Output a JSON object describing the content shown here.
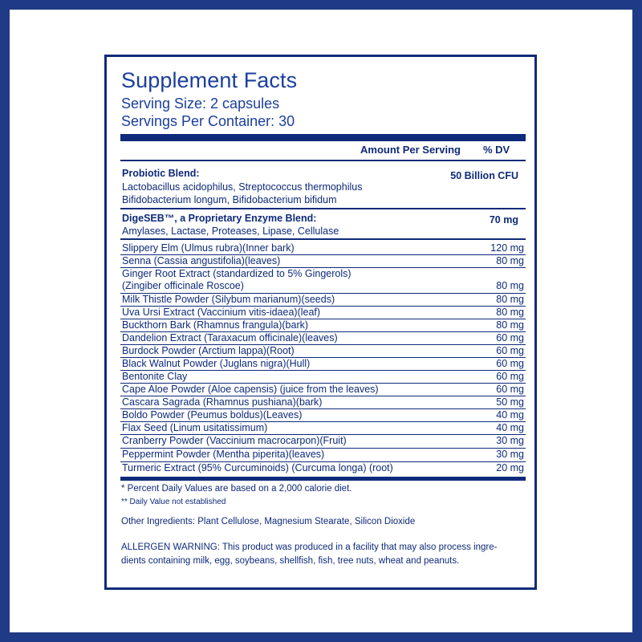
{
  "title": "Supplement Facts",
  "serving_size": "Serving Size: 2 capsules",
  "servings_per_container": "Servings Per Container: 30",
  "header": {
    "amount": "Amount Per Serving",
    "dv": "% DV"
  },
  "probiotic": {
    "title": "Probiotic Blend:",
    "line1": "Lactobacillus acidophilus, Streptococcus thermophilus",
    "line2": "Bifidobacterium longum, Bifidobacterium bifidum",
    "amount": "50 Billion CFU"
  },
  "enzyme": {
    "title": "DigeSEB™, a Proprietary Enzyme Blend:",
    "line1": "Amylases, Lactase, Proteases, Lipase, Cellulase",
    "amount": "70 mg"
  },
  "ingredients": [
    {
      "name": "Slippery Elm (Ulmus rubra)(Inner bark)",
      "amount": "120 mg"
    },
    {
      "name": "Senna (Cassia angustifolia)(leaves)",
      "amount": "80 mg"
    },
    {
      "name": "Ginger Root Extract (standardized to 5% Gingerols)",
      "name2": "(Zingiber officinale Roscoe)",
      "amount": "80 mg"
    },
    {
      "name": "Milk Thistle Powder (Silybum marianum)(seeds)",
      "amount": "80 mg"
    },
    {
      "name": "Uva Ursi Extract (Vaccinium vitis-idaea)(leaf)",
      "amount": "80 mg"
    },
    {
      "name": "Buckthorn Bark (Rhamnus frangula)(bark)",
      "amount": "80 mg"
    },
    {
      "name": "Dandelion Extract (Taraxacum officinale)(leaves)",
      "amount": "60 mg"
    },
    {
      "name": "Burdock Powder (Arctium lappa)(Root)",
      "amount": "60 mg"
    },
    {
      "name": "Black Walnut Powder (Juglans nigra)(Hull)",
      "amount": "60 mg"
    },
    {
      "name": "Bentonite Clay",
      "amount": "60 mg"
    },
    {
      "name": "Cape Aloe Powder (Aloe capensis) (juice from the leaves)",
      "amount": "60 mg"
    },
    {
      "name": "Cascara Sagrada (Rhamnus pushiana)(bark)",
      "amount": "50 mg"
    },
    {
      "name": "Boldo Powder (Peumus boldus)(Leaves)",
      "amount": "40 mg"
    },
    {
      "name": "Flax Seed (Linum usitatissimum)",
      "amount": "40 mg"
    },
    {
      "name": "Cranberry Powder (Vaccinium macrocarpon)(Fruit)",
      "amount": "30 mg"
    },
    {
      "name": "Peppermint Powder (Mentha piperita)(leaves)",
      "amount": "30 mg"
    },
    {
      "name": "Turmeric Extract (95% Curcuminoids) (Curcuma longa) (root)",
      "amount": "20 mg"
    }
  ],
  "footnote1": "* Percent Daily Values are based on a 2,000 calorie diet.",
  "footnote2": "** Daily Value not established",
  "other_ingredients": "Other Ingredients: Plant Cellulose, Magnesium Stearate, Silicon Dioxide",
  "allergen_line1": "ALLERGEN WARNING: This product was produced in a facility that may also process ingre-",
  "allergen_line2": "dients containing milk, egg, soybeans, shellfish, fish, tree nuts, wheat and peanuts.",
  "colors": {
    "frame": "#1f3a86",
    "ink": "#0e2a7a",
    "title": "#1b3f9e"
  }
}
